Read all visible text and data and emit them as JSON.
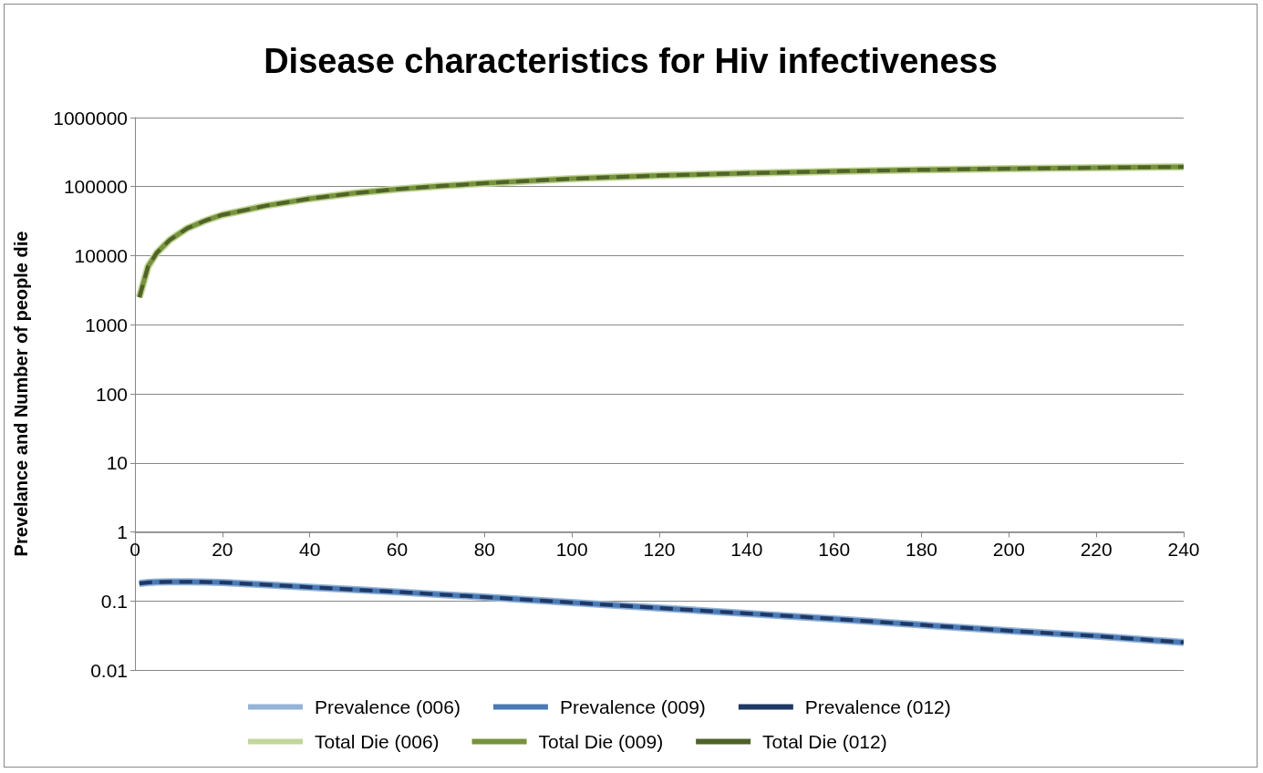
{
  "chart_data": {
    "type": "line",
    "title": "Disease characteristics for Hiv infectiveness",
    "ylabel": "Prevelance and Number of people die",
    "x": [
      1,
      3,
      5,
      8,
      12,
      16,
      20,
      30,
      40,
      50,
      60,
      70,
      80,
      90,
      100,
      120,
      140,
      160,
      180,
      200,
      220,
      240
    ],
    "series": [
      {
        "name": "Prevalence (006)",
        "color": "#95b3d7",
        "line_style": "solid",
        "values": [
          0.18,
          0.185,
          0.188,
          0.19,
          0.19,
          0.188,
          0.185,
          0.172,
          0.158,
          0.146,
          0.135,
          0.124,
          0.114,
          0.104,
          0.095,
          0.079,
          0.066,
          0.055,
          0.045,
          0.037,
          0.031,
          0.025
        ]
      },
      {
        "name": "Prevalence (009)",
        "color": "#4a7ab5",
        "line_style": "solid",
        "values": [
          0.18,
          0.185,
          0.188,
          0.19,
          0.19,
          0.188,
          0.185,
          0.172,
          0.158,
          0.146,
          0.135,
          0.124,
          0.114,
          0.104,
          0.095,
          0.079,
          0.066,
          0.055,
          0.045,
          0.037,
          0.031,
          0.025
        ]
      },
      {
        "name": "Prevalence (012)",
        "color": "#1f3864",
        "line_style": "dashed",
        "values": [
          0.18,
          0.185,
          0.188,
          0.19,
          0.19,
          0.188,
          0.185,
          0.172,
          0.158,
          0.146,
          0.135,
          0.124,
          0.114,
          0.104,
          0.095,
          0.079,
          0.066,
          0.055,
          0.045,
          0.037,
          0.031,
          0.025
        ]
      },
      {
        "name": "Total Die (006)",
        "color": "#c3d69b",
        "line_style": "solid",
        "values": [
          2500,
          7000,
          11000,
          17000,
          25000,
          32000,
          39000,
          53000,
          67000,
          80000,
          92000,
          102000,
          112000,
          121000,
          130000,
          145000,
          157000,
          167000,
          175000,
          182000,
          188000,
          193000
        ]
      },
      {
        "name": "Total Die (009)",
        "color": "#77933c",
        "line_style": "solid",
        "values": [
          2500,
          7000,
          11000,
          17000,
          25000,
          32000,
          39000,
          53000,
          67000,
          80000,
          92000,
          102000,
          112000,
          121000,
          130000,
          145000,
          157000,
          167000,
          175000,
          182000,
          188000,
          193000
        ]
      },
      {
        "name": "Total Die (012)",
        "color": "#4f6228",
        "line_style": "dashed",
        "values": [
          2500,
          7000,
          11000,
          17000,
          25000,
          32000,
          39000,
          53000,
          67000,
          80000,
          92000,
          102000,
          112000,
          121000,
          130000,
          145000,
          157000,
          167000,
          175000,
          182000,
          188000,
          193000
        ]
      }
    ],
    "xlim": [
      0,
      240
    ],
    "xticks": [
      0,
      20,
      40,
      60,
      80,
      100,
      120,
      140,
      160,
      180,
      200,
      220,
      240
    ],
    "log": "y",
    "ylim": [
      0.01,
      1000000
    ],
    "yticks": [
      0.01,
      0.1,
      1,
      10,
      100,
      1000,
      10000,
      100000,
      1000000
    ],
    "grid": "y",
    "legend": "bottom",
    "marker": "none"
  }
}
